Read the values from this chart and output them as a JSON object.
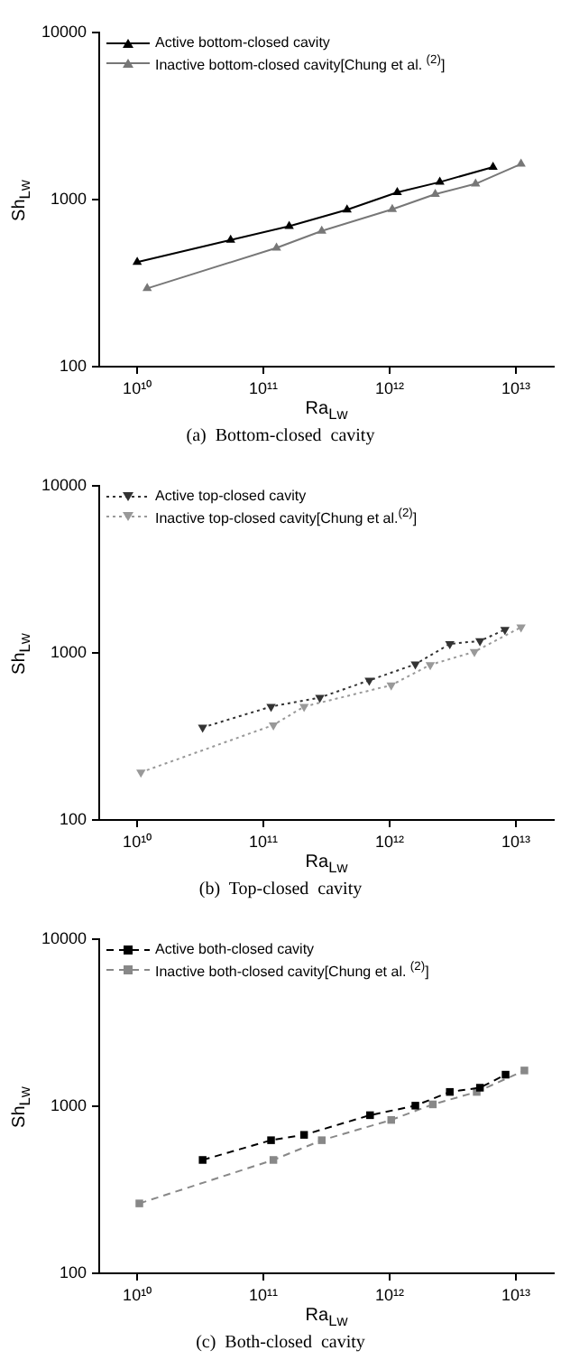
{
  "chart_data": [
    {
      "type": "line",
      "title": "(a)  Bottom-closed  cavity",
      "xlabel": "Ra$_{Lw}$",
      "ylabel": "Sh$_{Lw}$",
      "log": "xy",
      "grid": false,
      "legend": "top left",
      "xlim": [
        5000000000.0,
        20000000000000.0
      ],
      "ylim": [
        100,
        10000
      ],
      "xticks": [
        {
          "value": 10000000000.0,
          "label": "10¹⁰"
        },
        {
          "value": 100000000000.0,
          "label": "10¹¹"
        },
        {
          "value": 1000000000000.0,
          "label": "10¹²"
        },
        {
          "value": 10000000000000.0,
          "label": "10¹³"
        }
      ],
      "yticks": [
        100,
        1000,
        10000
      ],
      "series": [
        {
          "name": "Active bottom-closed cavity",
          "color": "#000000",
          "marker": "triangle",
          "line_style": "solid",
          "x": [
            10000000000.0,
            55000000000.0,
            160000000000.0,
            460000000000.0,
            1150000000000.0,
            2500000000000.0,
            6600000000000.0
          ],
          "values": [
            422,
            573,
            693,
            869,
            1105,
            1273,
            1566
          ]
        },
        {
          "name": "Inactive bottom-closed cavity[Chung et al. $^{(2)}$]",
          "color": "#777777",
          "marker": "triangle",
          "line_style": "solid",
          "x": [
            12000000000.0,
            127000000000.0,
            290000000000.0,
            1050000000000.0,
            2300000000000.0,
            4800000000000.0,
            11000000000000.0
          ],
          "values": [
            294,
            514,
            649,
            875,
            1077,
            1242,
            1633
          ]
        }
      ]
    },
    {
      "type": "line",
      "title": "(b)  Top-closed  cavity",
      "xlabel": "Ra$_{Lw}$",
      "ylabel": "Sh$_{Lw}$",
      "log": "xy",
      "grid": false,
      "legend": "top left",
      "xlim": [
        5000000000.0,
        20000000000000.0
      ],
      "ylim": [
        100,
        10000
      ],
      "xticks": [
        {
          "value": 10000000000.0,
          "label": "10¹⁰"
        },
        {
          "value": 100000000000.0,
          "label": "10¹¹"
        },
        {
          "value": 1000000000000.0,
          "label": "10¹²"
        },
        {
          "value": 10000000000000.0,
          "label": "10¹³"
        }
      ],
      "yticks": [
        100,
        1000,
        10000
      ],
      "series": [
        {
          "name": "Active top-closed cavity",
          "color": "#333333",
          "marker": "triangle_down",
          "line_style": "dotted",
          "x": [
            33000000000.0,
            115000000000.0,
            280000000000.0,
            690000000000.0,
            1600000000000.0,
            3000000000000.0,
            5200000000000.0,
            8200000000000.0
          ],
          "values": [
            358,
            477,
            540,
            685,
            855,
            1132,
            1179,
            1378
          ]
        },
        {
          "name": "Inactive top-closed cavity[Chung et al.$^{(2)}$]",
          "color": "#999999",
          "marker": "triangle_down",
          "line_style": "dotted",
          "x": [
            10700000000.0,
            120000000000.0,
            210000000000.0,
            1030000000000.0,
            2100000000000.0,
            4700000000000.0,
            11000000000000.0
          ],
          "values": [
            193,
            370,
            477,
            641,
            849,
            1016,
            1425
          ]
        }
      ]
    },
    {
      "type": "line",
      "title": "(c)  Both-closed  cavity",
      "xlabel": "Ra$_{Lw}$",
      "ylabel": "Sh$_{Lw}$",
      "log": "xy",
      "grid": false,
      "legend": "top left",
      "xlim": [
        5000000000.0,
        20000000000000.0
      ],
      "ylim": [
        100,
        10000
      ],
      "xticks": [
        {
          "value": 10000000000.0,
          "label": "10¹⁰"
        },
        {
          "value": 100000000000.0,
          "label": "10¹¹"
        },
        {
          "value": 1000000000000.0,
          "label": "10¹²"
        },
        {
          "value": 10000000000000.0,
          "label": "10¹³"
        }
      ],
      "yticks": [
        100,
        1000,
        10000
      ],
      "series": [
        {
          "name": "Active both-closed cavity",
          "color": "#000000",
          "marker": "square",
          "line_style": "dashed",
          "x": [
            33000000000.0,
            115000000000.0,
            210000000000.0,
            700000000000.0,
            1600000000000.0,
            3000000000000.0,
            5200000000000.0,
            8300000000000.0
          ],
          "values": [
            477,
            626,
            674,
            884,
            1008,
            1218,
            1291,
            1545
          ]
        },
        {
          "name": "Inactive both-closed cavity[Chung et al. $^{(2)}$]",
          "color": "#888888",
          "marker": "square",
          "line_style": "dashed",
          "x": [
            10400000000.0,
            120000000000.0,
            290000000000.0,
            1030000000000.0,
            2200000000000.0,
            4900000000000.0,
            11700000000000.0
          ],
          "values": [
            262,
            477,
            626,
            828,
            1026,
            1218,
            1637
          ]
        }
      ]
    }
  ]
}
